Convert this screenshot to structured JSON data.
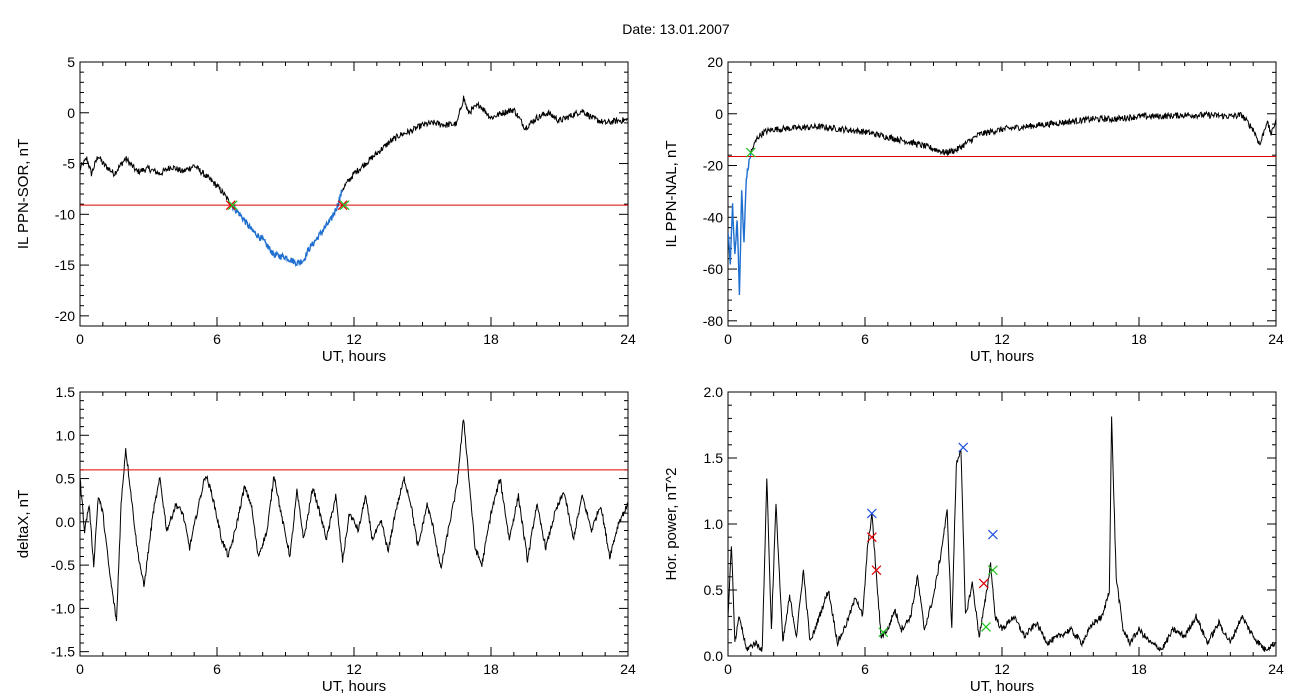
{
  "figure": {
    "title": "Date:  13.01.2007",
    "colors": {
      "trace": "#000000",
      "highlight": "#1f6fd0",
      "threshold": "#e00000",
      "marker_red": "#e00000",
      "marker_green": "#22c022",
      "marker_blue": "#2050e0"
    }
  },
  "chart_data": [
    {
      "type": "line",
      "xlabel": "UT, hours",
      "ylabel": "IL PPN-SOR, nT",
      "xlim": [
        0,
        24
      ],
      "ylim": [
        -21,
        5
      ],
      "xticks": [
        0,
        6,
        12,
        18,
        24
      ],
      "xtick_labels": [
        "0",
        "6",
        "12",
        "18",
        "24"
      ],
      "yticks": [
        -20,
        -15,
        -10,
        -5,
        0,
        5
      ],
      "ytick_labels": [
        "-20",
        "-15",
        "-10",
        "-5",
        "0",
        "5"
      ],
      "series": [
        {
          "x": [
            0,
            0.3,
            0.5,
            0.8,
            1.0,
            1.5,
            2.0,
            2.5,
            3.0,
            3.5,
            4.0,
            4.5,
            5.0,
            5.5,
            6.0,
            6.3,
            6.6,
            7.0,
            7.5,
            8.0,
            8.5,
            9.0,
            9.5,
            9.8,
            10.0,
            10.5,
            11.0,
            11.3,
            11.5,
            12.0,
            12.5,
            13.0,
            13.5,
            14.0,
            14.5,
            15.0,
            15.5,
            16.0,
            16.5,
            16.8,
            17.0,
            17.3,
            17.5,
            18.0,
            18.5,
            19.0,
            19.5,
            20.0,
            20.5,
            21.0,
            21.5,
            22.0,
            22.5,
            23.0,
            23.5,
            24.0
          ],
          "y": [
            -5.5,
            -4.5,
            -6,
            -4.2,
            -5,
            -6,
            -4.5,
            -5.8,
            -5.5,
            -6,
            -5.3,
            -5.8,
            -5.2,
            -6.2,
            -7.2,
            -8,
            -9,
            -10,
            -11.5,
            -12.5,
            -14,
            -14.2,
            -14.8,
            -14.5,
            -13.5,
            -12,
            -10.5,
            -9,
            -7.5,
            -6,
            -5,
            -4,
            -3,
            -2.2,
            -1.8,
            -1.2,
            -1,
            -1.2,
            -1.1,
            1.5,
            0,
            0.5,
            0.8,
            -0.5,
            0,
            0.3,
            -1.5,
            -0.5,
            0,
            -0.8,
            -0.3,
            0.2,
            -0.6,
            -1,
            -0.8,
            -0.7
          ]
        }
      ],
      "highlight_range": [
        6.6,
        11.5
      ],
      "threshold": -9.1,
      "markers": [
        {
          "x": 6.6,
          "y": -9.1,
          "colors": [
            "#e00000",
            "#22c022"
          ]
        },
        {
          "x": 11.5,
          "y": -9.1,
          "colors": [
            "#e00000",
            "#22c022"
          ]
        }
      ]
    },
    {
      "type": "line",
      "xlabel": "UT, hours",
      "ylabel": "IL PPN-NAL, nT",
      "xlim": [
        0,
        24
      ],
      "ylim": [
        -82,
        20
      ],
      "xticks": [
        0,
        6,
        12,
        18,
        24
      ],
      "xtick_labels": [
        "0",
        "6",
        "12",
        "18",
        "24"
      ],
      "yticks": [
        -80,
        -60,
        -40,
        -20,
        0,
        20
      ],
      "ytick_labels": [
        "-80",
        "-60",
        "-40",
        "-20",
        "0",
        "20"
      ],
      "series": [
        {
          "x": [
            0,
            0.1,
            0.2,
            0.3,
            0.4,
            0.5,
            0.6,
            0.7,
            0.8,
            1.0,
            1.3,
            1.6,
            2.0,
            3.0,
            4.0,
            5.0,
            6.0,
            7.0,
            8.0,
            9.0,
            9.5,
            10.0,
            10.5,
            11.0,
            12.0,
            13.0,
            14.0,
            15.0,
            16.0,
            17.0,
            18.0,
            19.0,
            20.0,
            21.0,
            22.0,
            22.5,
            23.0,
            23.3,
            23.6,
            23.8,
            24.0
          ],
          "y": [
            -45,
            -58,
            -35,
            -55,
            -40,
            -70,
            -30,
            -50,
            -25,
            -15,
            -9,
            -7,
            -6,
            -5.5,
            -5,
            -6,
            -7,
            -9,
            -11,
            -13.5,
            -15,
            -14,
            -11,
            -8,
            -6,
            -5,
            -4,
            -3,
            -2,
            -2,
            -1,
            -1,
            -0.5,
            -0.5,
            -1,
            -0.5,
            -6,
            -12,
            -3,
            -8,
            -2
          ]
        }
      ],
      "highlight_range": [
        0,
        1.0
      ],
      "threshold": -16.5,
      "markers": [
        {
          "x": 1.0,
          "y": -15,
          "colors": [
            "#22c022"
          ]
        }
      ]
    },
    {
      "type": "line",
      "xlabel": "UT, hours",
      "ylabel": "deltaX, nT",
      "xlim": [
        0,
        24
      ],
      "ylim": [
        -1.55,
        1.5
      ],
      "xticks": [
        0,
        6,
        12,
        18,
        24
      ],
      "xtick_labels": [
        "0",
        "6",
        "12",
        "18",
        "24"
      ],
      "yticks": [
        -1.5,
        -1.0,
        -0.5,
        0.0,
        0.5,
        1.0,
        1.5
      ],
      "ytick_labels": [
        "-1.5",
        "-1.0",
        "-0.5",
        "0.0",
        "0.5",
        "1.0",
        "1.5"
      ],
      "series": [
        {
          "x": [
            0,
            0.2,
            0.4,
            0.6,
            0.8,
            1.0,
            1.3,
            1.6,
            1.8,
            2.0,
            2.2,
            2.5,
            2.8,
            3.2,
            3.5,
            3.8,
            4.2,
            4.5,
            4.8,
            5.2,
            5.5,
            5.8,
            6.2,
            6.5,
            6.8,
            7.2,
            7.5,
            7.8,
            8.2,
            8.5,
            8.8,
            9.2,
            9.5,
            9.8,
            10.2,
            10.5,
            10.8,
            11.2,
            11.5,
            11.8,
            12.2,
            12.5,
            12.8,
            13.2,
            13.5,
            13.8,
            14.2,
            14.5,
            14.8,
            15.2,
            15.5,
            15.8,
            16.2,
            16.5,
            16.8,
            17.0,
            17.3,
            17.6,
            18.0,
            18.4,
            18.8,
            19.2,
            19.6,
            20.0,
            20.4,
            20.8,
            21.2,
            21.6,
            22.0,
            22.4,
            22.8,
            23.2,
            23.6,
            24.0
          ],
          "y": [
            0.5,
            -0.1,
            0.2,
            -0.5,
            0.3,
            0.1,
            -0.6,
            -1.15,
            0.2,
            0.85,
            0.4,
            -0.3,
            -0.75,
            0.1,
            0.5,
            -0.1,
            0.2,
            0.1,
            -0.3,
            0.2,
            0.55,
            0.3,
            -0.2,
            -0.4,
            -0.1,
            0.4,
            0.2,
            -0.4,
            -0.1,
            0.55,
            0.1,
            -0.4,
            0.35,
            -0.2,
            0.4,
            0.1,
            -0.2,
            0.3,
            -0.45,
            0.1,
            -0.1,
            0.3,
            -0.2,
            0.0,
            -0.35,
            0.1,
            0.5,
            0.2,
            -0.3,
            0.2,
            -0.1,
            -0.55,
            0.0,
            0.4,
            1.2,
            0.6,
            -0.3,
            -0.5,
            0.1,
            0.5,
            -0.2,
            0.3,
            -0.45,
            0.2,
            -0.3,
            0.1,
            0.35,
            -0.2,
            0.3,
            -0.1,
            0.2,
            -0.4,
            0.0,
            0.2
          ]
        }
      ],
      "threshold": 0.6
    },
    {
      "type": "line",
      "xlabel": "UT, hours",
      "ylabel": "Hor. power, nT^2",
      "xlim": [
        0,
        24
      ],
      "ylim": [
        0,
        2.0
      ],
      "xticks": [
        0,
        6,
        12,
        18,
        24
      ],
      "xtick_labels": [
        "0",
        "6",
        "12",
        "18",
        "24"
      ],
      "yticks": [
        0.0,
        0.5,
        1.0,
        1.5,
        2.0
      ],
      "ytick_labels": [
        "0.0",
        "0.5",
        "1.0",
        "1.5",
        "2.0"
      ],
      "series": [
        {
          "x": [
            0,
            0.15,
            0.3,
            0.5,
            0.8,
            1.2,
            1.5,
            1.7,
            1.9,
            2.1,
            2.4,
            2.7,
            3.0,
            3.3,
            3.6,
            4.0,
            4.4,
            4.8,
            5.2,
            5.6,
            5.9,
            6.1,
            6.3,
            6.5,
            6.7,
            7.0,
            7.3,
            7.6,
            8.0,
            8.3,
            8.6,
            9.0,
            9.3,
            9.6,
            9.8,
            10.0,
            10.2,
            10.4,
            10.7,
            11.0,
            11.3,
            11.5,
            11.7,
            12.0,
            12.5,
            13.0,
            13.5,
            14.0,
            14.5,
            15.0,
            15.5,
            16.0,
            16.4,
            16.7,
            16.8,
            17.0,
            17.3,
            17.6,
            18.0,
            18.5,
            19.0,
            19.5,
            20.0,
            20.5,
            21.0,
            21.5,
            22.0,
            22.5,
            23.0,
            23.5,
            24.0
          ],
          "y": [
            0.3,
            0.85,
            0.1,
            0.3,
            0.05,
            0.1,
            0.05,
            1.35,
            0.2,
            1.15,
            0.1,
            0.45,
            0.15,
            0.65,
            0.1,
            0.3,
            0.5,
            0.1,
            0.25,
            0.45,
            0.3,
            0.8,
            1.08,
            0.6,
            0.15,
            0.2,
            0.35,
            0.2,
            0.3,
            0.6,
            0.2,
            0.45,
            0.75,
            1.1,
            0.2,
            1.45,
            1.58,
            0.3,
            0.55,
            0.15,
            0.45,
            0.7,
            0.3,
            0.2,
            0.3,
            0.15,
            0.25,
            0.1,
            0.15,
            0.2,
            0.1,
            0.25,
            0.3,
            0.5,
            1.8,
            0.6,
            0.2,
            0.1,
            0.2,
            0.1,
            0.05,
            0.2,
            0.15,
            0.3,
            0.1,
            0.25,
            0.1,
            0.3,
            0.15,
            0.05,
            0.1
          ]
        }
      ],
      "markers": [
        {
          "x": 6.3,
          "y": 1.08,
          "colors": [
            "#2050e0"
          ]
        },
        {
          "x": 6.3,
          "y": 0.9,
          "colors": [
            "#e00000"
          ]
        },
        {
          "x": 6.5,
          "y": 0.65,
          "colors": [
            "#e00000"
          ]
        },
        {
          "x": 6.8,
          "y": 0.18,
          "colors": [
            "#22c022"
          ]
        },
        {
          "x": 10.3,
          "y": 1.58,
          "colors": [
            "#2050e0"
          ]
        },
        {
          "x": 11.6,
          "y": 0.92,
          "colors": [
            "#2050e0"
          ]
        },
        {
          "x": 11.2,
          "y": 0.55,
          "colors": [
            "#e00000"
          ]
        },
        {
          "x": 11.6,
          "y": 0.65,
          "colors": [
            "#22c022"
          ]
        },
        {
          "x": 11.3,
          "y": 0.22,
          "colors": [
            "#22c022"
          ]
        }
      ]
    }
  ]
}
